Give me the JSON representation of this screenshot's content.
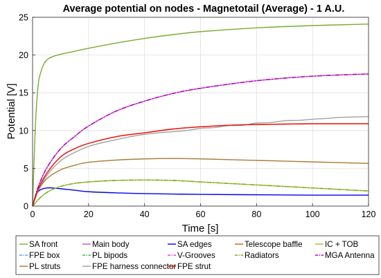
{
  "chart_data": {
    "type": "line",
    "title": "Average potential on nodes - Magnetotail (Average) - 1 A.U.",
    "xlabel": "Time [s]",
    "ylabel": "Potential [V]",
    "xlim": [
      0,
      120
    ],
    "ylim": [
      0,
      25
    ],
    "xticks": [
      0,
      20,
      40,
      60,
      80,
      100,
      120
    ],
    "yticks": [
      0,
      5,
      10,
      15,
      20,
      25
    ],
    "grid": true,
    "legend_position": "bottom, outside plot, 5 columns",
    "series": [
      {
        "name": "SA front",
        "color": "#77ac30",
        "dash": "solid",
        "x": [
          0,
          1,
          2,
          3,
          4,
          5,
          6,
          8,
          10,
          15,
          20,
          30,
          40,
          50,
          60,
          80,
          100,
          120
        ],
        "y": [
          0,
          10.5,
          16,
          17.8,
          18.8,
          19.3,
          19.6,
          19.9,
          20.1,
          20.5,
          20.9,
          21.6,
          22.2,
          22.7,
          23.1,
          23.6,
          23.9,
          24.1
        ]
      },
      {
        "name": "Main body",
        "color": "#d24ed2",
        "dash": "solid",
        "x": [
          0,
          2,
          5,
          10,
          15,
          20,
          30,
          40,
          50,
          60,
          80,
          100,
          120
        ],
        "y": [
          0,
          2.5,
          5.0,
          7.6,
          9.2,
          10.6,
          12.6,
          13.9,
          14.9,
          15.6,
          16.6,
          17.2,
          17.5
        ]
      },
      {
        "name": "SA edges",
        "color": "#0000ee",
        "dash": "solid",
        "x": [
          0,
          1,
          2,
          3,
          5,
          7,
          10,
          15,
          20,
          30,
          40,
          60,
          80,
          100,
          120
        ],
        "y": [
          0,
          1.3,
          1.9,
          2.2,
          2.4,
          2.4,
          2.3,
          2.1,
          1.9,
          1.75,
          1.65,
          1.55,
          1.5,
          1.45,
          1.45
        ]
      },
      {
        "name": "Telescope baffle",
        "color": "#d95319",
        "dash": "solid",
        "x": [
          0,
          2,
          5,
          10,
          15,
          20,
          30,
          40,
          50,
          60,
          70,
          80,
          100,
          120
        ],
        "y": [
          0,
          2.2,
          4.3,
          6.5,
          7.6,
          8.3,
          9.2,
          9.7,
          10.2,
          10.5,
          10.7,
          10.8,
          10.9,
          10.9
        ]
      },
      {
        "name": "IC + TOB",
        "color": "#b8b820",
        "dash": "solid",
        "x": [
          0,
          3,
          6,
          10,
          15,
          20,
          30,
          40,
          50,
          60,
          80,
          100,
          120
        ],
        "y": [
          0,
          1.2,
          2.0,
          2.6,
          3.0,
          3.2,
          3.4,
          3.45,
          3.4,
          3.2,
          2.8,
          2.4,
          2.0
        ]
      },
      {
        "name": "FPE box",
        "color": "#4da3e0",
        "dash": "dashdot",
        "x": [
          0,
          2,
          5,
          10,
          15,
          20,
          30,
          40,
          50,
          60,
          80,
          100,
          120
        ],
        "y": [
          0,
          2.5,
          5.0,
          7.6,
          9.2,
          10.6,
          12.6,
          13.9,
          14.9,
          15.6,
          16.6,
          17.2,
          17.5
        ]
      },
      {
        "name": "PL bipods",
        "color": "#44bb44",
        "dash": "dashdot",
        "x": [
          0,
          3,
          6,
          10,
          15,
          20,
          30,
          40,
          50,
          60,
          80,
          100,
          120
        ],
        "y": [
          0,
          1.2,
          2.0,
          2.6,
          3.0,
          3.2,
          3.4,
          3.45,
          3.4,
          3.2,
          2.8,
          2.4,
          2.0
        ]
      },
      {
        "name": "V-Grooves",
        "color": "#d24ed2",
        "dash": "dashdot",
        "x": [
          0,
          2,
          5,
          10,
          15,
          20,
          30,
          40,
          50,
          60,
          80,
          100,
          120
        ],
        "y": [
          0,
          2.5,
          5.0,
          7.6,
          9.2,
          10.6,
          12.6,
          13.9,
          14.9,
          15.6,
          16.6,
          17.2,
          17.5
        ]
      },
      {
        "name": "Radiators",
        "color": "#77ac30",
        "dash": "dashdot",
        "x": [
          0,
          3,
          6,
          10,
          15,
          20,
          30,
          40,
          50,
          60,
          80,
          100,
          120
        ],
        "y": [
          0,
          1.2,
          2.0,
          2.6,
          3.0,
          3.2,
          3.4,
          3.45,
          3.4,
          3.2,
          2.8,
          2.4,
          2.0
        ]
      },
      {
        "name": "MGA Antenna",
        "color": "#b000b0",
        "dash": "dashdot",
        "x": [
          0,
          2,
          5,
          10,
          15,
          20,
          30,
          40,
          50,
          60,
          80,
          100,
          120
        ],
        "y": [
          0,
          2.5,
          5.0,
          7.6,
          9.2,
          10.6,
          12.6,
          13.9,
          14.9,
          15.6,
          16.6,
          17.2,
          17.5
        ]
      },
      {
        "name": "PL struts",
        "color": "#a87a35",
        "dash": "solid",
        "x": [
          0,
          2,
          5,
          10,
          15,
          20,
          30,
          40,
          50,
          60,
          70,
          80,
          100,
          120
        ],
        "y": [
          0,
          2.0,
          3.6,
          4.8,
          5.4,
          5.8,
          6.1,
          6.25,
          6.3,
          6.25,
          6.15,
          6.05,
          5.85,
          5.65
        ]
      },
      {
        "name": "FPE harness connector",
        "color": "#a0a0a0",
        "dash": "solid",
        "x": [
          0,
          2,
          5,
          10,
          15,
          20,
          25,
          30,
          35,
          40,
          45,
          50,
          55,
          60,
          65,
          70,
          75,
          80,
          85,
          90,
          95,
          100,
          105,
          110,
          115,
          120
        ],
        "y": [
          0,
          2.0,
          4.0,
          6.0,
          7.1,
          7.9,
          8.4,
          8.8,
          9.2,
          9.5,
          9.7,
          9.85,
          10.0,
          10.3,
          10.4,
          10.65,
          10.7,
          11.0,
          11.05,
          11.3,
          11.35,
          11.5,
          11.6,
          11.75,
          11.8,
          11.85
        ]
      },
      {
        "name": "FPE strut",
        "color": "#ee1111",
        "dash": "solid",
        "x": [
          0,
          2,
          5,
          10,
          15,
          20,
          30,
          40,
          50,
          60,
          70,
          80,
          100,
          120
        ],
        "y": [
          0,
          2.2,
          4.3,
          6.5,
          7.6,
          8.3,
          9.2,
          9.7,
          10.2,
          10.5,
          10.7,
          10.8,
          10.9,
          10.9
        ]
      }
    ]
  }
}
